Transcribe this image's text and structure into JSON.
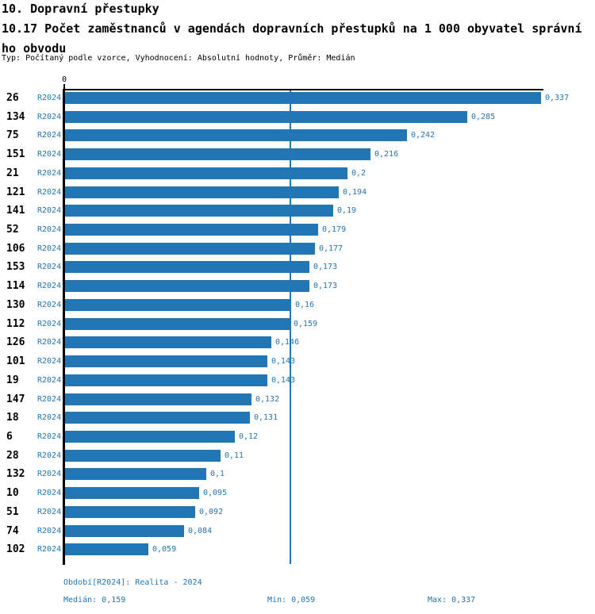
{
  "chart_data": {
    "type": "bar",
    "orientation": "horizontal",
    "title": "10. Dopravní přestupky",
    "subtitle_lines": [
      "10.17 Počet zaměstnanců v agendách dopravních přestupků na 1 000 obyvatel správní",
      "ho obvodu"
    ],
    "meta": "Typ: Počítaný podle vzorce, Vyhodnocení: Absolutní hodnoty, Průměr: Medián",
    "series_label": "R2024",
    "categories": [
      "26",
      "134",
      "75",
      "151",
      "21",
      "121",
      "141",
      "52",
      "106",
      "153",
      "114",
      "130",
      "112",
      "126",
      "101",
      "19",
      "147",
      "18",
      "6",
      "28",
      "132",
      "10",
      "51",
      "74",
      "102"
    ],
    "values": [
      0.337,
      0.285,
      0.242,
      0.216,
      0.2,
      0.194,
      0.19,
      0.179,
      0.177,
      0.173,
      0.173,
      0.16,
      0.159,
      0.146,
      0.143,
      0.143,
      0.132,
      0.131,
      0.12,
      0.11,
      0.1,
      0.095,
      0.092,
      0.084,
      0.059
    ],
    "value_labels": [
      "0,337",
      "0,285",
      "0,242",
      "0,216",
      "0,2",
      "0,194",
      "0,19",
      "0,179",
      "0,177",
      "0,173",
      "0,173",
      "0,16",
      "0,159",
      "0,146",
      "0,143",
      "0,143",
      "0,132",
      "0,131",
      "0,12",
      "0,11",
      "0,1",
      "0,095",
      "0,092",
      "0,084",
      "0,059"
    ],
    "x_tick_labels": [
      "0"
    ],
    "xlim": [
      0,
      0.337
    ],
    "median": 0.159,
    "grid": "single vertical median reference line",
    "legend": "none"
  },
  "footer": {
    "period": "Období[R2024]: Realita - 2024",
    "median_label": "Medián: 0,159",
    "min_label": "Min: 0,059",
    "max_label": "Max: 0,337"
  },
  "colors": {
    "bar": "#2376b4",
    "blue_text": "#2376b4",
    "median_line": "#2376b4",
    "axis": "#000000",
    "background": "#ffffff"
  }
}
